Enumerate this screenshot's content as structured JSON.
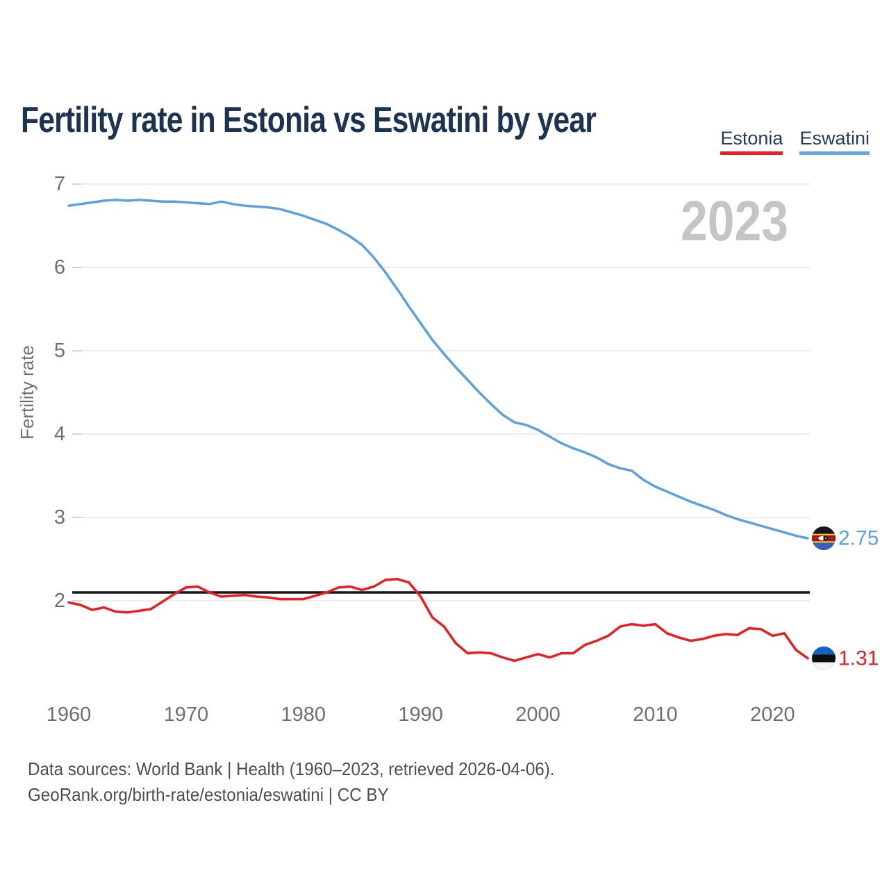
{
  "title": "Fertility rate in Estonia vs Eswatini by year",
  "legend": [
    {
      "label": "Estonia",
      "color": "#ee1c25"
    },
    {
      "label": "Eswatini",
      "color": "#63a7e6"
    }
  ],
  "watermark": "2023",
  "y_axis": {
    "label": "Fertility rate",
    "ticks": [
      7,
      6,
      5,
      4,
      3,
      2
    ]
  },
  "x_axis": {
    "ticks": [
      1960,
      1970,
      1980,
      1990,
      2000,
      2010,
      2020
    ]
  },
  "reference_line": {
    "value": 2.1,
    "color": "#161616"
  },
  "chart_data": {
    "type": "line",
    "title": "Fertility rate in Estonia vs Eswatini by year",
    "xlabel": "",
    "ylabel": "Fertility rate",
    "xlim": [
      1960,
      2023
    ],
    "ylim": [
      1.1,
      7.1
    ],
    "grid": "horizontal",
    "legend_position": "top-right",
    "years": [
      1960,
      1961,
      1962,
      1963,
      1964,
      1965,
      1966,
      1967,
      1968,
      1969,
      1970,
      1971,
      1972,
      1973,
      1974,
      1975,
      1976,
      1977,
      1978,
      1979,
      1980,
      1981,
      1982,
      1983,
      1984,
      1985,
      1986,
      1987,
      1988,
      1989,
      1990,
      1991,
      1992,
      1993,
      1994,
      1995,
      1996,
      1997,
      1998,
      1999,
      2000,
      2001,
      2002,
      2003,
      2004,
      2005,
      2006,
      2007,
      2008,
      2009,
      2010,
      2011,
      2012,
      2013,
      2014,
      2015,
      2016,
      2017,
      2018,
      2019,
      2020,
      2021,
      2022,
      2023
    ],
    "series": [
      {
        "name": "Eswatini",
        "color": "#5aa1e3",
        "end_label": "2.75",
        "flag_icon": "eswatini-flag",
        "values": [
          6.74,
          6.76,
          6.78,
          6.8,
          6.81,
          6.8,
          6.81,
          6.8,
          6.79,
          6.79,
          6.78,
          6.77,
          6.76,
          6.79,
          6.76,
          6.74,
          6.73,
          6.72,
          6.7,
          6.66,
          6.62,
          6.57,
          6.52,
          6.45,
          6.37,
          6.27,
          6.12,
          5.94,
          5.74,
          5.53,
          5.33,
          5.13,
          4.96,
          4.8,
          4.65,
          4.5,
          4.36,
          4.23,
          4.14,
          4.11,
          4.05,
          3.97,
          3.89,
          3.83,
          3.78,
          3.72,
          3.64,
          3.59,
          3.56,
          3.45,
          3.37,
          3.31,
          3.25,
          3.19,
          3.14,
          3.09,
          3.03,
          2.98,
          2.94,
          2.9,
          2.86,
          2.82,
          2.78,
          2.75
        ]
      },
      {
        "name": "Estonia",
        "color": "#ec1b24",
        "end_label": "1.31",
        "flag_icon": "estonia-flag",
        "values": [
          1.98,
          1.95,
          1.89,
          1.92,
          1.87,
          1.86,
          1.88,
          1.9,
          1.99,
          2.08,
          2.16,
          2.17,
          2.1,
          2.05,
          2.06,
          2.07,
          2.05,
          2.04,
          2.02,
          2.02,
          2.02,
          2.06,
          2.1,
          2.16,
          2.17,
          2.13,
          2.17,
          2.25,
          2.26,
          2.22,
          2.05,
          1.8,
          1.69,
          1.49,
          1.37,
          1.38,
          1.37,
          1.32,
          1.28,
          1.32,
          1.36,
          1.32,
          1.37,
          1.37,
          1.47,
          1.52,
          1.58,
          1.69,
          1.72,
          1.7,
          1.72,
          1.61,
          1.56,
          1.52,
          1.54,
          1.58,
          1.6,
          1.59,
          1.67,
          1.66,
          1.58,
          1.61,
          1.41,
          1.31
        ]
      }
    ]
  },
  "footer": {
    "line1": "Data sources: World Bank | Health (1960–2023, retrieved 2026-04-06).",
    "line2": "GeoRank.org/birth-rate/estonia/eswatini | CC BY"
  }
}
